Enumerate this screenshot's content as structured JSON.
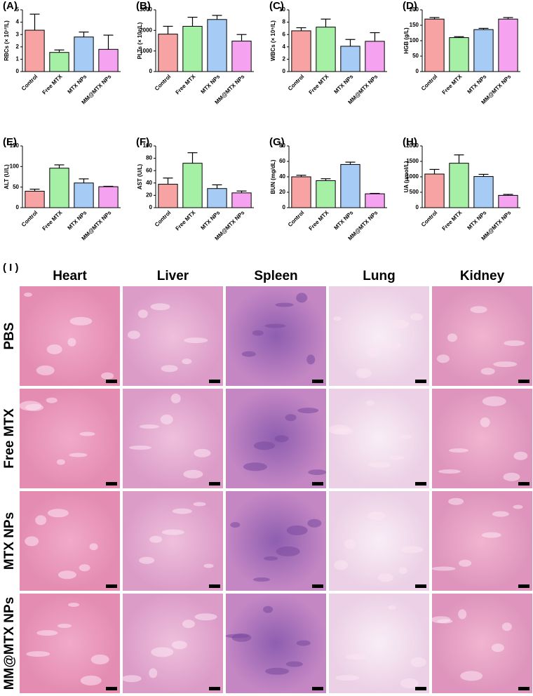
{
  "chart_data": [
    {
      "type": "bar",
      "label": "(A)",
      "y_label": "RBCs (× 10¹²/L)",
      "categories": [
        "Control",
        "Free MTX",
        "MTX NPs",
        "MM@MTX NPs"
      ],
      "values": [
        3.35,
        1.55,
        2.8,
        1.8
      ],
      "errors": [
        1.3,
        0.2,
        0.4,
        1.15
      ],
      "colors": [
        "#f7a3a3",
        "#a6f0a6",
        "#a6cbf5",
        "#f5a3f0"
      ],
      "ylim": [
        0,
        5
      ],
      "yticks": [
        0,
        1,
        2,
        3,
        4,
        5
      ]
    },
    {
      "type": "bar",
      "label": "(B)",
      "y_label": "PLTs (× 10⁹/L)",
      "categories": [
        "Control",
        "Free MTX",
        "MTX NPs",
        "MM@MTX NPs"
      ],
      "values": [
        1820,
        2200,
        2530,
        1480
      ],
      "errors": [
        380,
        440,
        200,
        320
      ],
      "colors": [
        "#f7a3a3",
        "#a6f0a6",
        "#a6cbf5",
        "#f5a3f0"
      ],
      "ylim": [
        0,
        3000
      ],
      "yticks": [
        0,
        1000,
        2000,
        3000
      ]
    },
    {
      "type": "bar",
      "label": "(C)",
      "y_label": "WBCs (× 10⁹/L)",
      "categories": [
        "Control",
        "Free MTX",
        "MTX NPs",
        "MM@MTX NPs"
      ],
      "values": [
        6.6,
        7.2,
        4.1,
        4.9
      ],
      "errors": [
        0.5,
        1.3,
        1.1,
        1.4
      ],
      "colors": [
        "#f7a3a3",
        "#a6f0a6",
        "#a6cbf5",
        "#f5a3f0"
      ],
      "ylim": [
        0,
        10
      ],
      "yticks": [
        0,
        2,
        4,
        6,
        8,
        10
      ]
    },
    {
      "type": "bar",
      "label": "(D)",
      "y_label": "HGB (g/L)",
      "categories": [
        "Control",
        "Free MTX",
        "MTX NPs",
        "MM@MTX NPs"
      ],
      "values": [
        170,
        110,
        136,
        170
      ],
      "errors": [
        5,
        3,
        4,
        5
      ],
      "colors": [
        "#f7a3a3",
        "#a6f0a6",
        "#a6cbf5",
        "#f5a3f0"
      ],
      "ylim": [
        0,
        200
      ],
      "yticks": [
        0,
        50,
        100,
        150,
        200
      ]
    },
    {
      "type": "bar",
      "label": "(E)",
      "y_label": "ALT (U/L)",
      "categories": [
        "Control",
        "Free MTX",
        "MTX NPs",
        "MM@MTX NPs"
      ],
      "values": [
        40,
        96,
        60,
        51
      ],
      "errors": [
        5,
        8,
        10,
        1
      ],
      "colors": [
        "#f7a3a3",
        "#a6f0a6",
        "#a6cbf5",
        "#f5a3f0"
      ],
      "ylim": [
        0,
        150
      ],
      "yticks": [
        0,
        50,
        100,
        150
      ]
    },
    {
      "type": "bar",
      "label": "(F)",
      "y_label": "AST (U/L)",
      "categories": [
        "Control",
        "Free MTX",
        "MTX NPs",
        "MM@MTX NPs"
      ],
      "values": [
        38,
        72,
        31,
        24
      ],
      "errors": [
        10,
        17,
        6,
        3
      ],
      "colors": [
        "#f7a3a3",
        "#a6f0a6",
        "#a6cbf5",
        "#f5a3f0"
      ],
      "ylim": [
        0,
        100
      ],
      "yticks": [
        0,
        20,
        40,
        60,
        80,
        100
      ]
    },
    {
      "type": "bar",
      "label": "(G)",
      "y_label": "BUN (mg/dL)",
      "categories": [
        "Control",
        "Free MTX",
        "MTX NPs",
        "MM@MTX NPs"
      ],
      "values": [
        40,
        35,
        56,
        18
      ],
      "errors": [
        2,
        2.5,
        3,
        0.5
      ],
      "colors": [
        "#f7a3a3",
        "#a6f0a6",
        "#a6cbf5",
        "#f5a3f0"
      ],
      "ylim": [
        0,
        80
      ],
      "yticks": [
        0,
        20,
        40,
        60,
        80
      ]
    },
    {
      "type": "bar",
      "label": "(H)",
      "y_label": "UA (μmol/L)",
      "categories": [
        "Control",
        "Free MTX",
        "MTX NPs",
        "MM@MTX NPs"
      ],
      "values": [
        1090,
        1440,
        1010,
        400
      ],
      "errors": [
        150,
        270,
        70,
        30
      ],
      "colors": [
        "#f7a3a3",
        "#a6f0a6",
        "#a6cbf5",
        "#f5a3f0"
      ],
      "ylim": [
        0,
        2000
      ],
      "yticks": [
        0,
        500,
        1000,
        1500,
        2000
      ]
    }
  ],
  "histology": {
    "label": "( I )",
    "columns": [
      "Heart",
      "Liver",
      "Spleen",
      "Lung",
      "Kidney"
    ],
    "rows": [
      "PBS",
      "Free MTX",
      "MTX NPs",
      "MM@MTX NPs"
    ]
  }
}
